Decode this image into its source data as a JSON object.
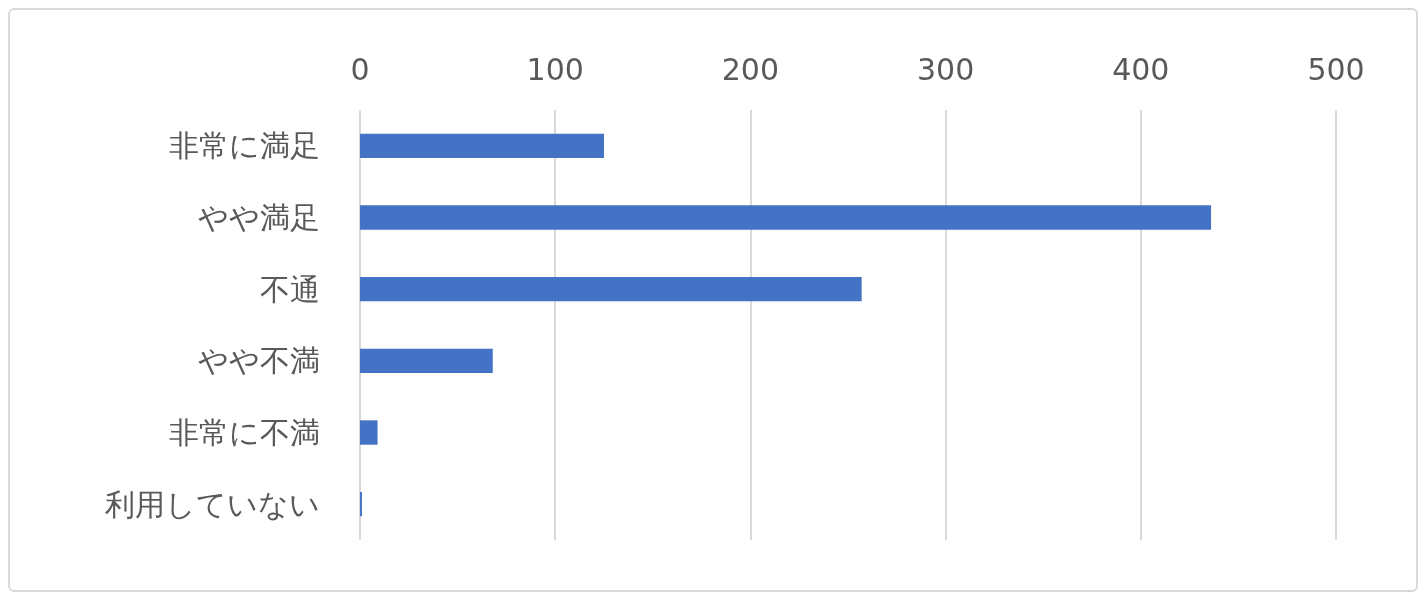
{
  "chart_data": {
    "type": "bar",
    "orientation": "horizontal",
    "categories": [
      "非常に満足",
      "やや満足",
      "不通",
      "やや不満",
      "非常に不満",
      "利用していない"
    ],
    "values": [
      125,
      436,
      257,
      68,
      9,
      1
    ],
    "color": "#4472c4",
    "xlim": [
      0,
      500
    ],
    "xticks": [
      0,
      100,
      200,
      300,
      400,
      500
    ],
    "grid": "x"
  }
}
